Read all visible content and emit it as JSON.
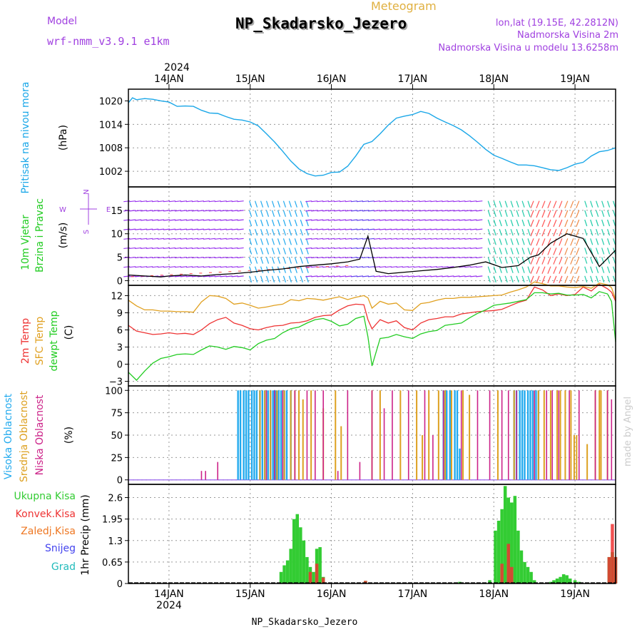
{
  "header": {
    "model_label": "Model",
    "model_name": "wrf-nmm_v3.9.1 e1km",
    "product": "Meteogram",
    "station": "NP_Skadarsko_Jezero",
    "coords": "lon,lat (19.15E, 42.2812N)",
    "elevation": "Nadmorska Visina 2m",
    "model_elevation": "Nadmorska Visina u modelu 13.6258m"
  },
  "footer": {
    "station": "NP_Skadarsko_Jezero"
  },
  "watermark": "made by Angel",
  "colors": {
    "pressure": "#1aa7e8",
    "wind": "#9933ee",
    "wind_speed": "#000000",
    "gust": "#ff4444",
    "temp2m": "#ee3333",
    "sfc_temp": "#e0a020",
    "dewpoint": "#22cc22",
    "cloud_high": "#22aaee",
    "cloud_mid": "#dda020",
    "cloud_low": "#cc2288",
    "precip_total": "#33cc33",
    "precip_conv": "#ee3333",
    "precip_freezing": "#ee7722",
    "snow": "#4444ee",
    "hail": "#22bbbb",
    "grid": "#999999",
    "header_purple": "#a040e0",
    "header_gold": "#e0b040"
  },
  "time_axis": {
    "year": "2024",
    "ticks": [
      "14JAN",
      "15JAN",
      "16JAN",
      "17JAN",
      "18JAN",
      "19JAN"
    ]
  },
  "chart_data": [
    {
      "type": "line",
      "panel": "pressure",
      "ylabel_name": "Pritisak na nivou mora",
      "ylabel_unit": "(hPa)",
      "ylim": [
        998,
        1023
      ],
      "yticks": [
        1002,
        1008,
        1014,
        1020
      ],
      "x": [
        -0.5,
        -0.45,
        -0.4,
        -0.3,
        -0.2,
        -0.1,
        0,
        0.1,
        0.2,
        0.3,
        0.4,
        0.5,
        0.6,
        0.7,
        0.8,
        0.9,
        1,
        1.1,
        1.2,
        1.3,
        1.4,
        1.5,
        1.6,
        1.7,
        1.8,
        1.9,
        2,
        2.1,
        2.2,
        2.3,
        2.4,
        2.5,
        2.6,
        2.7,
        2.8,
        2.9,
        3,
        3.1,
        3.2,
        3.3,
        3.4,
        3.5,
        3.6,
        3.7,
        3.8,
        3.9,
        4,
        4.1,
        4.2,
        4.3,
        4.4,
        4.5,
        4.6,
        4.7,
        4.8,
        4.9,
        5,
        5.1,
        5.2,
        5.3,
        5.4,
        5.5
      ],
      "series": [
        {
          "values": [
            1019.5,
            1020.8,
            1020.3,
            1020.6,
            1020.4,
            1020.0,
            1019.7,
            1018.6,
            1018.7,
            1018.6,
            1017.6,
            1016.9,
            1016.8,
            1016.0,
            1015.3,
            1015.1,
            1014.6,
            1013.6,
            1011.6,
            1009.5,
            1007.1,
            1004.6,
            1002.6,
            1001.4,
            1000.8,
            1001.0,
            1001.7,
            1001.8,
            1003.3,
            1005.9,
            1008.9,
            1009.6,
            1011.6,
            1013.8,
            1015.6,
            1016.1,
            1016.5,
            1017.3,
            1016.8,
            1015.6,
            1014.6,
            1013.7,
            1012.6,
            1011.1,
            1009.4,
            1007.6,
            1006.1,
            1005.3,
            1004.4,
            1003.6,
            1003.6,
            1003.4,
            1002.9,
            1002.4,
            1002.2,
            1002.9,
            1003.8,
            1004.3,
            1005.9,
            1007.0,
            1007.3,
            1008.0
          ]
        }
      ]
    },
    {
      "type": "line",
      "panel": "wind",
      "ylabel_name": "10m Vjetar",
      "ylabel_name2": "Brzina i Pravac",
      "ylabel_unit": "(m/s)",
      "compass": {
        "n": "N",
        "s": "S",
        "e": "E",
        "w": "W"
      },
      "ylim": [
        -1,
        20
      ],
      "yticks": [
        0,
        5,
        10,
        15
      ],
      "x": [
        -0.5,
        -0.3,
        -0.1,
        0,
        0.2,
        0.4,
        0.6,
        0.8,
        1,
        1.2,
        1.4,
        1.6,
        1.8,
        2,
        2.2,
        2.35,
        2.45,
        2.55,
        2.7,
        2.9,
        3.1,
        3.3,
        3.5,
        3.7,
        3.9,
        4.1,
        4.3,
        4.45,
        4.55,
        4.7,
        4.9,
        5.1,
        5.3,
        5.5
      ],
      "series": [
        {
          "name": "speed",
          "values": [
            1.2,
            1.0,
            0.8,
            1.0,
            1.2,
            1.0,
            1.3,
            1.5,
            1.8,
            2.2,
            2.5,
            3.0,
            3.3,
            3.6,
            4.0,
            4.6,
            9.5,
            2.0,
            1.5,
            1.8,
            2.1,
            2.4,
            2.8,
            3.3,
            4.0,
            2.8,
            3.2,
            5.0,
            5.5,
            8.0,
            10.0,
            9.0,
            3.0,
            6.5
          ]
        }
      ]
    },
    {
      "type": "line",
      "panel": "temperature",
      "ylabel_names": [
        "2m Temp",
        "SFC Temp",
        "dewpt Temp"
      ],
      "ylabel_unit": "(C)",
      "ylim": [
        -3.8,
        13.8
      ],
      "yticks": [
        -3,
        0,
        3,
        6,
        9,
        12
      ],
      "x": [
        -0.5,
        -0.4,
        -0.3,
        -0.2,
        -0.1,
        0,
        0.1,
        0.2,
        0.3,
        0.4,
        0.5,
        0.6,
        0.7,
        0.8,
        0.9,
        1,
        1.1,
        1.2,
        1.3,
        1.4,
        1.5,
        1.6,
        1.7,
        1.8,
        1.9,
        2,
        2.1,
        2.2,
        2.3,
        2.4,
        2.45,
        2.5,
        2.6,
        2.7,
        2.8,
        2.9,
        3,
        3.1,
        3.2,
        3.3,
        3.4,
        3.5,
        3.6,
        3.7,
        3.8,
        3.9,
        4,
        4.1,
        4.2,
        4.3,
        4.4,
        4.5,
        4.6,
        4.7,
        4.8,
        4.9,
        5,
        5.1,
        5.2,
        5.3,
        5.4,
        5.45,
        5.5
      ],
      "series": [
        {
          "name": "2m Temp",
          "values": [
            6.8,
            5.8,
            5.5,
            5.2,
            5.3,
            5.5,
            5.3,
            5.4,
            5.2,
            6.0,
            7.1,
            7.8,
            8.2,
            7.2,
            6.8,
            6.2,
            6.0,
            6.4,
            6.7,
            6.8,
            7.2,
            7.3,
            7.6,
            8.2,
            8.5,
            8.6,
            9.5,
            10.2,
            10.5,
            10.4,
            7.8,
            6.2,
            7.8,
            7.2,
            7.6,
            6.4,
            6.0,
            7.2,
            7.8,
            8.0,
            8.3,
            8.3,
            8.8,
            9.0,
            9.2,
            9.3,
            9.4,
            9.6,
            10.2,
            10.8,
            11.2,
            13.5,
            13.0,
            12.0,
            12.3,
            12.0,
            12.2,
            13.5,
            12.8,
            14.0,
            13.2,
            12.6,
            11.0
          ]
        },
        {
          "name": "SFC Temp",
          "values": [
            11.2,
            10.2,
            9.5,
            9.5,
            9.3,
            9.3,
            9.2,
            9.2,
            9.1,
            10.9,
            12.0,
            11.9,
            11.5,
            10.5,
            10.7,
            10.3,
            9.8,
            10.0,
            10.3,
            10.5,
            11.3,
            11.1,
            11.5,
            11.4,
            11.2,
            11.5,
            11.8,
            11.3,
            11.7,
            12.0,
            11.6,
            9.8,
            11.0,
            10.5,
            10.7,
            9.5,
            9.4,
            10.6,
            10.8,
            11.2,
            11.5,
            11.5,
            11.7,
            11.7,
            11.8,
            11.9,
            12.0,
            12.1,
            12.6,
            13.0,
            13.5,
            14.4,
            14.1,
            13.7,
            13.7,
            13.5,
            13.4,
            13.6,
            13.3,
            14.2,
            13.9,
            13.4,
            11.3
          ]
        },
        {
          "name": "dewpt Temp",
          "values": [
            -1.4,
            -2.8,
            -1.2,
            0.2,
            1.0,
            1.3,
            1.7,
            1.8,
            1.7,
            2.5,
            3.2,
            3.0,
            2.6,
            3.1,
            2.9,
            2.5,
            3.6,
            4.2,
            4.5,
            5.5,
            6.2,
            6.5,
            7.2,
            7.8,
            8.0,
            7.5,
            6.7,
            7.0,
            8.0,
            8.4,
            4.8,
            -0.3,
            4.5,
            4.7,
            5.2,
            4.8,
            4.5,
            5.3,
            5.7,
            5.9,
            6.8,
            7.0,
            7.2,
            8.1,
            8.9,
            9.5,
            10.3,
            10.5,
            10.7,
            11.0,
            11.3,
            12.5,
            12.5,
            12.3,
            12.4,
            12.1,
            12.1,
            12.2,
            11.6,
            12.7,
            12.3,
            11.0,
            3.9
          ]
        }
      ]
    },
    {
      "type": "bar",
      "panel": "cloud",
      "ylabel_names": [
        "Visoka Oblacnost",
        "Srednja Oblacnost",
        "Niska Oblacnost"
      ],
      "ylabel_unit": "(%)",
      "ylim": [
        -5,
        105
      ],
      "yticks": [
        0,
        25,
        50,
        75,
        100
      ],
      "series": [
        {
          "name": "Visoka Oblacnost",
          "x": [
            0.85,
            0.88,
            0.92,
            0.95,
            0.98,
            1.02,
            1.05,
            1.08,
            1.12,
            1.15,
            1.18,
            1.22,
            1.25,
            1.28,
            1.3,
            1.32,
            1.35,
            1.38,
            1.42,
            1.45,
            1.5,
            3.38,
            3.42,
            3.46,
            3.52,
            3.55,
            3.58,
            4.25,
            4.28,
            4.32,
            4.35,
            4.38,
            4.42,
            4.45,
            4.48,
            4.52,
            4.55
          ],
          "values": [
            100,
            100,
            100,
            100,
            100,
            100,
            100,
            100,
            100,
            100,
            100,
            100,
            100,
            100,
            100,
            100,
            100,
            100,
            100,
            100,
            100,
            100,
            100,
            100,
            100,
            100,
            35,
            100,
            100,
            100,
            100,
            100,
            100,
            100,
            100,
            100,
            100
          ]
        },
        {
          "name": "Srednja Oblacnost",
          "x": [
            1.12,
            1.18,
            1.25,
            1.33,
            1.42,
            1.5,
            1.55,
            1.6,
            1.65,
            1.75,
            1.9,
            2.05,
            2.12,
            2.5,
            2.6,
            2.85,
            3.05,
            3.12,
            3.2,
            3.32,
            3.4,
            3.48,
            3.62,
            3.7,
            4.05,
            4.25,
            4.55,
            4.62,
            4.7,
            4.78,
            4.82,
            4.88,
            4.95,
            4.99,
            5.02,
            5.15,
            5.25,
            5.3,
            5.32,
            5.4
          ],
          "values": [
            100,
            100,
            100,
            100,
            100,
            100,
            100,
            100,
            90,
            100,
            80,
            100,
            60,
            100,
            100,
            100,
            100,
            50,
            100,
            100,
            100,
            100,
            100,
            95,
            100,
            100,
            100,
            100,
            100,
            100,
            100,
            100,
            100,
            50,
            50,
            40,
            100,
            100,
            100,
            100
          ]
        },
        {
          "name": "Niska Oblacnost",
          "x": [
            0.4,
            0.45,
            0.6,
            1.2,
            1.3,
            1.4,
            1.55,
            1.7,
            1.8,
            1.9,
            2.08,
            2.2,
            2.35,
            2.5,
            2.65,
            2.75,
            2.95,
            3.15,
            3.25,
            3.38,
            3.6,
            3.8,
            3.95,
            4.1,
            4.18,
            4.28,
            4.5,
            4.65,
            4.72,
            4.8,
            4.93,
            5.05,
            5.25,
            5.4,
            5.45
          ],
          "values": [
            10,
            10,
            20,
            100,
            100,
            100,
            100,
            100,
            100,
            100,
            10,
            100,
            20,
            100,
            80,
            100,
            100,
            100,
            50,
            100,
            100,
            100,
            100,
            100,
            100,
            100,
            100,
            100,
            100,
            100,
            100,
            100,
            100,
            100,
            90
          ]
        }
      ]
    },
    {
      "type": "bar",
      "panel": "precip",
      "legend": [
        "Ukupna Kisa",
        "Konvek.Kisa",
        "Zaledj.Kisa",
        "Snijeg",
        "Grad"
      ],
      "ylabel_unit": "1hr Precip (mm)",
      "ylim": [
        0,
        3.0
      ],
      "yticks": [
        0,
        0.65,
        1.3,
        1.95,
        2.6
      ],
      "series": [
        {
          "name": "Ukupna Kisa",
          "x": [
            1.38,
            1.42,
            1.46,
            1.5,
            1.54,
            1.58,
            1.62,
            1.66,
            1.7,
            1.74,
            1.78,
            1.82,
            1.86,
            1.9,
            2.42,
            3.58,
            3.95,
            4.02,
            4.06,
            4.1,
            4.14,
            4.18,
            4.22,
            4.26,
            4.3,
            4.34,
            4.38,
            4.42,
            4.46,
            4.5,
            4.7,
            4.74,
            4.78,
            4.82,
            4.86,
            4.9,
            4.94,
            5.0,
            5.05,
            5.42,
            5.46,
            5.5
          ],
          "values": [
            0.35,
            0.55,
            0.7,
            1.05,
            1.95,
            2.1,
            1.7,
            1.3,
            0.8,
            0.5,
            0.35,
            1.05,
            1.1,
            0.2,
            0.08,
            0.05,
            0.1,
            1.6,
            1.9,
            2.25,
            2.95,
            2.6,
            2.45,
            2.65,
            1.6,
            1.0,
            0.65,
            0.5,
            0.35,
            0.1,
            0.05,
            0.1,
            0.15,
            0.2,
            0.28,
            0.25,
            0.15,
            0.1,
            0.05,
            0.8,
            0.95,
            0.8
          ]
        },
        {
          "name": "Konvek.Kisa",
          "x": [
            1.74,
            1.82,
            1.9,
            2.42,
            4.1,
            4.18,
            4.22,
            5.42,
            5.46,
            5.5
          ],
          "values": [
            0.35,
            0.6,
            0.18,
            0.08,
            0.6,
            1.2,
            0.5,
            0.8,
            1.8,
            0.8
          ]
        }
      ]
    }
  ]
}
